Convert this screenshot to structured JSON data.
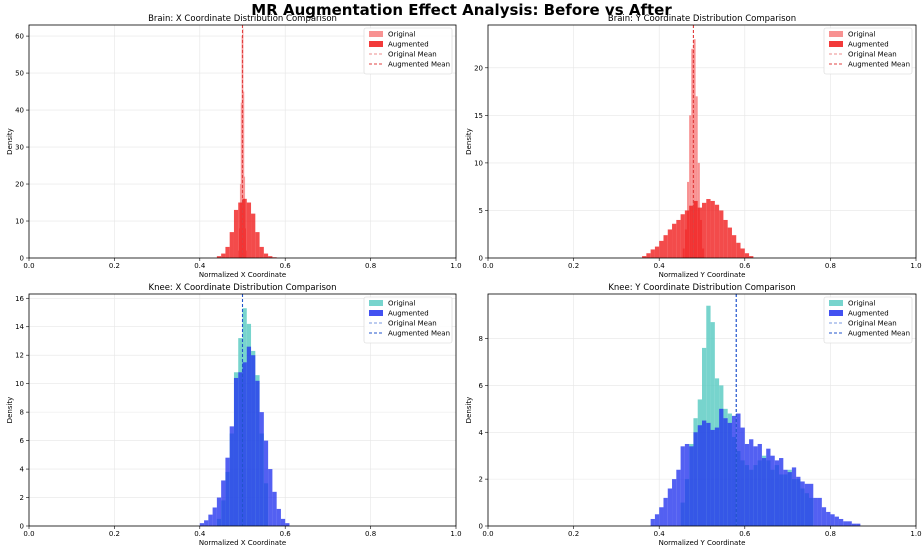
{
  "figure": {
    "title": "MR Augmentation Effect Analysis: Before vs After"
  },
  "colors": {
    "brain_original": "#f77f7f",
    "brain_augmented": "#f01818",
    "brain_mean": "#e04040",
    "knee_original": "#5fcdc4",
    "knee_augmented": "#2233ee",
    "knee_mean": "#2255cc"
  },
  "chart_data": [
    {
      "id": "brain-x",
      "type": "histogram",
      "title": "Brain: X Coordinate Distribution Comparison",
      "xlabel": "Normalized X Coordinate",
      "ylabel": "Density",
      "xlim": [
        0,
        1
      ],
      "ylim": [
        0,
        63
      ],
      "xticks": [
        "0.0",
        "0.2",
        "0.4",
        "0.6",
        "0.8",
        "1.0"
      ],
      "xtick_values": [
        0,
        0.2,
        0.4,
        0.6,
        0.8,
        1.0
      ],
      "yticks": [
        "0",
        "10",
        "20",
        "30",
        "40",
        "50",
        "60"
      ],
      "ytick_values": [
        0,
        10,
        20,
        30,
        40,
        50,
        60
      ],
      "grid": true,
      "legend_position": "top-right",
      "legend": [
        "Original",
        "Augmented",
        "Original Mean",
        "Augmented Mean"
      ],
      "color_original": "#f77f7f",
      "color_augmented": "#f01818",
      "color_mean": "#e04040",
      "original": {
        "bins": [
          0.49,
          0.492,
          0.494,
          0.496,
          0.498,
          0.5,
          0.502,
          0.504,
          0.506,
          0.508
        ],
        "width": 0.002,
        "density": [
          2,
          8,
          20,
          42,
          60,
          62,
          45,
          22,
          8,
          2
        ]
      },
      "augmented": {
        "bins": [
          0.44,
          0.45,
          0.46,
          0.47,
          0.48,
          0.49,
          0.5,
          0.51,
          0.52,
          0.53,
          0.54,
          0.55,
          0.56,
          0.57
        ],
        "width": 0.01,
        "density": [
          0.5,
          1.2,
          3,
          7,
          13,
          15,
          16,
          15,
          12,
          7,
          3,
          1.2,
          0.5,
          0.2
        ]
      },
      "original_mean": 0.5,
      "augmented_mean": 0.5
    },
    {
      "id": "brain-y",
      "type": "histogram",
      "title": "Brain: Y Coordinate Distribution Comparison",
      "xlabel": "Normalized Y Coordinate",
      "ylabel": "Density",
      "xlim": [
        0,
        1
      ],
      "ylim": [
        0,
        24.5
      ],
      "xticks": [
        "0.0",
        "0.2",
        "0.4",
        "0.6",
        "0.8",
        "1.0"
      ],
      "xtick_values": [
        0,
        0.2,
        0.4,
        0.6,
        0.8,
        1.0
      ],
      "yticks": [
        "0",
        "5",
        "10",
        "15",
        "20"
      ],
      "ytick_values": [
        0,
        5,
        10,
        15,
        20
      ],
      "grid": true,
      "legend_position": "top-right",
      "legend": [
        "Original",
        "Augmented",
        "Original Mean",
        "Augmented Mean"
      ],
      "color_original": "#f77f7f",
      "color_augmented": "#f01818",
      "color_mean": "#e04040",
      "original": {
        "bins": [
          0.455,
          0.46,
          0.465,
          0.47,
          0.475,
          0.48,
          0.485,
          0.49,
          0.495,
          0.5
        ],
        "width": 0.005,
        "density": [
          1,
          3,
          8,
          15,
          22,
          23,
          17,
          10,
          4,
          1
        ]
      },
      "augmented": {
        "bins": [
          0.36,
          0.37,
          0.38,
          0.39,
          0.4,
          0.41,
          0.42,
          0.43,
          0.44,
          0.45,
          0.46,
          0.47,
          0.48,
          0.49,
          0.5,
          0.51,
          0.52,
          0.53,
          0.54,
          0.55,
          0.56,
          0.57,
          0.58,
          0.59,
          0.6,
          0.61
        ],
        "width": 0.01,
        "density": [
          0.2,
          0.5,
          0.9,
          1.2,
          1.8,
          2.4,
          3.0,
          3.6,
          4.0,
          4.6,
          5.0,
          5.5,
          6.0,
          5.3,
          5.8,
          6.2,
          6.0,
          5.6,
          5.0,
          4.0,
          3.2,
          2.4,
          1.6,
          1.0,
          0.5,
          0.2
        ]
      },
      "original_mean": 0.48,
      "augmented_mean": 0.48
    },
    {
      "id": "knee-x",
      "type": "histogram",
      "title": "Knee: X Coordinate Distribution Comparison",
      "xlabel": "Normalized X Coordinate",
      "ylabel": "Density",
      "xlim": [
        0,
        1
      ],
      "ylim": [
        0,
        16.3
      ],
      "xticks": [
        "0.0",
        "0.2",
        "0.4",
        "0.6",
        "0.8",
        "1.0"
      ],
      "xtick_values": [
        0,
        0.2,
        0.4,
        0.6,
        0.8,
        1.0
      ],
      "yticks": [
        "0",
        "2",
        "4",
        "6",
        "8",
        "10",
        "12",
        "14",
        "16"
      ],
      "ytick_values": [
        0,
        2,
        4,
        6,
        8,
        10,
        12,
        14,
        16
      ],
      "grid": true,
      "legend_position": "top-right",
      "legend": [
        "Original",
        "Augmented",
        "Original Mean",
        "Augmented Mean"
      ],
      "color_original": "#5fcdc4",
      "color_augmented": "#2233ee",
      "color_mean": "#2255cc",
      "original": {
        "bins": [
          0.44,
          0.45,
          0.46,
          0.47,
          0.48,
          0.49,
          0.5,
          0.51,
          0.52,
          0.53,
          0.54,
          0.55
        ],
        "width": 0.01,
        "density": [
          0.5,
          1.8,
          3.8,
          6.5,
          10.8,
          13.2,
          15.3,
          14.2,
          12.3,
          10.6,
          6.5,
          3.0
        ]
      },
      "augmented": {
        "bins": [
          0.4,
          0.41,
          0.42,
          0.43,
          0.44,
          0.45,
          0.46,
          0.47,
          0.48,
          0.49,
          0.5,
          0.51,
          0.52,
          0.53,
          0.54,
          0.55,
          0.56,
          0.57,
          0.58,
          0.59,
          0.6
        ],
        "width": 0.01,
        "density": [
          0.2,
          0.4,
          0.8,
          1.3,
          2.0,
          3.2,
          4.8,
          7.0,
          10.4,
          10.8,
          11.5,
          12.6,
          12.0,
          10.2,
          8.0,
          6.0,
          4.0,
          2.4,
          1.2,
          0.5,
          0.2
        ]
      },
      "original_mean": 0.5,
      "augmented_mean": 0.5
    },
    {
      "id": "knee-y",
      "type": "histogram",
      "title": "Knee: Y Coordinate Distribution Comparison",
      "xlabel": "Normalized Y Coordinate",
      "ylabel": "Density",
      "xlim": [
        0,
        1
      ],
      "ylim": [
        0,
        9.9
      ],
      "xticks": [
        "0.0",
        "0.2",
        "0.4",
        "0.6",
        "0.8",
        "1.0"
      ],
      "xtick_values": [
        0,
        0.2,
        0.4,
        0.6,
        0.8,
        1.0
      ],
      "yticks": [
        "0",
        "2",
        "4",
        "6",
        "8"
      ],
      "ytick_values": [
        0,
        2,
        4,
        6,
        8
      ],
      "grid": true,
      "legend_position": "top-right",
      "legend": [
        "Original",
        "Augmented",
        "Original Mean",
        "Augmented Mean"
      ],
      "color_original": "#5fcdc4",
      "color_augmented": "#2233ee",
      "color_mean": "#2255cc",
      "original": {
        "bins": [
          0.45,
          0.46,
          0.47,
          0.48,
          0.49,
          0.5,
          0.51,
          0.52,
          0.53,
          0.54,
          0.55,
          0.56,
          0.57,
          0.58,
          0.59,
          0.6,
          0.61,
          0.62,
          0.63,
          0.64,
          0.65,
          0.66,
          0.67,
          0.68,
          0.69,
          0.7,
          0.71,
          0.72,
          0.73,
          0.74,
          0.75
        ],
        "width": 0.01,
        "density": [
          1.0,
          2.0,
          3.5,
          4.6,
          5.4,
          7.6,
          9.4,
          8.7,
          6.3,
          6.0,
          5.0,
          4.8,
          3.8,
          3.2,
          2.8,
          2.6,
          2.4,
          2.6,
          2.8,
          3.0,
          2.8,
          2.4,
          2.6,
          2.2,
          2.2,
          2.4,
          2.0,
          2.0,
          1.6,
          1.4,
          1.2
        ]
      },
      "augmented": {
        "bins": [
          0.38,
          0.39,
          0.4,
          0.41,
          0.42,
          0.43,
          0.44,
          0.45,
          0.46,
          0.47,
          0.48,
          0.49,
          0.5,
          0.51,
          0.52,
          0.53,
          0.54,
          0.55,
          0.56,
          0.57,
          0.58,
          0.59,
          0.6,
          0.61,
          0.62,
          0.63,
          0.64,
          0.65,
          0.66,
          0.67,
          0.68,
          0.69,
          0.7,
          0.71,
          0.72,
          0.73,
          0.74,
          0.75,
          0.76,
          0.77,
          0.78,
          0.79,
          0.8,
          0.81,
          0.82,
          0.83,
          0.84,
          0.85,
          0.86
        ],
        "width": 0.01,
        "density": [
          0.3,
          0.5,
          0.8,
          1.2,
          1.6,
          2.0,
          2.4,
          3.4,
          3.5,
          3.4,
          4.0,
          4.3,
          4.5,
          4.4,
          4.1,
          4.2,
          5.0,
          4.6,
          4.4,
          4.7,
          4.8,
          4.2,
          3.5,
          3.7,
          3.4,
          3.5,
          2.9,
          3.3,
          3.0,
          2.8,
          2.9,
          2.4,
          2.3,
          2.5,
          2.1,
          1.9,
          1.8,
          1.8,
          1.2,
          1.2,
          0.8,
          0.6,
          0.5,
          0.4,
          0.3,
          0.2,
          0.2,
          0.1,
          0.1
        ]
      },
      "original_mean": 0.58,
      "augmented_mean": 0.58
    }
  ]
}
